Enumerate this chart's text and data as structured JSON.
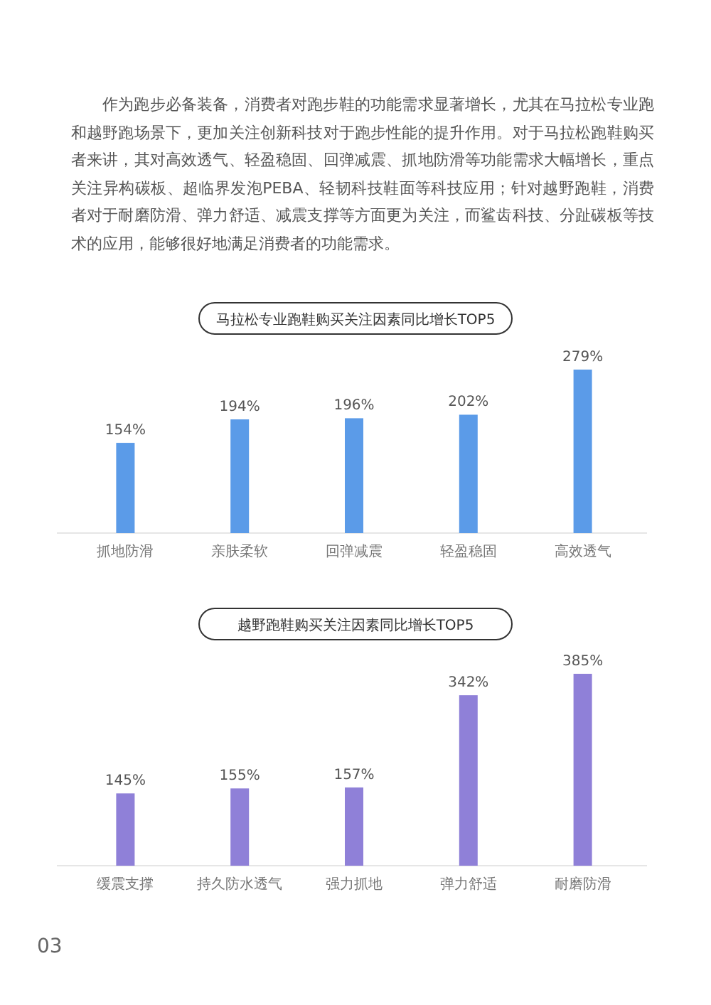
{
  "chart_data": [
    {
      "type": "bar",
      "title": "马拉松专业跑鞋购买关注因素同比增长TOP5",
      "annotations": [
        "作为跑步必备装备，消费者对跑步鞋的功能需求显著增长，尤其在马拉松专业跑和越野跑场景下，更加关注创新科技对于跑步性能的提升作用。对于马拉松跑鞋购买者来讲，其对高效透气、轻盈稳固、回弹减震、抓地防滑等功能需求大幅增长，重点关注异构碳板、超临界发泡PEBA、轻韧科技鞋面等科技应用；针对越野跑鞋，消费者对于耐磨防滑、弹力舒适、减震支撑等方面更为关注，而鲨齿科技、分趾碳板等技术的应用，能够很好地满足消费者的功能需求。"
      ],
      "categories": [
        "抓地防滑",
        "亲肤柔软",
        "回弹减震",
        "轻盈稳固",
        "高效透气"
      ],
      "values": [
        154,
        194,
        196,
        202,
        279
      ],
      "color": "#5b9be8",
      "value_labels": [
        "154%",
        "194%",
        "196%",
        "202%",
        "279%"
      ]
    },
    {
      "type": "bar",
      "title": "越野跑鞋购买关注因素同比增长TOP5",
      "annotations": [
        "03"
      ],
      "categories": [
        "缓震支撑",
        "持久防水透气",
        "强力抓地",
        "弹力舒适",
        "耐磨防滑"
      ],
      "values": [
        145,
        155,
        157,
        342,
        385
      ],
      "color": "#8f80d8",
      "value_labels": [
        "145%",
        "155%",
        "157%",
        "342%",
        "385%"
      ]
    }
  ]
}
